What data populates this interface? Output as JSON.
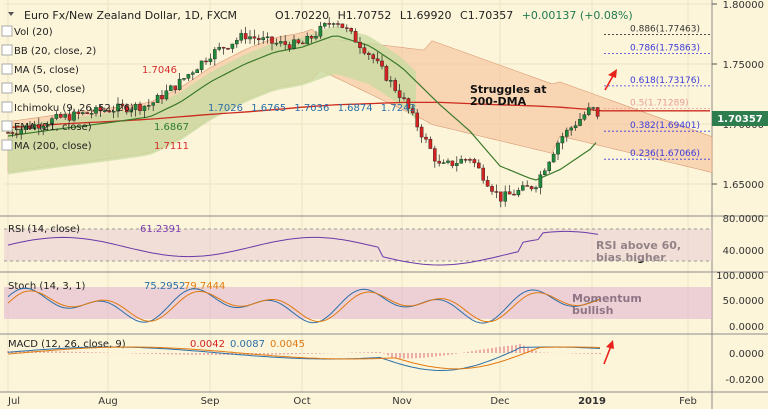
{
  "header": {
    "symbol": "Euro Fx/New Zealand Dollar, 1D, FXCM",
    "open": "O1.70220",
    "high": "H1.70752",
    "low": "L1.69920",
    "close": "C1.70357",
    "change": "+0.00137 (+0.08%)"
  },
  "indicators": [
    {
      "label": "Vol (20)",
      "values": []
    },
    {
      "label": "BB (20, close, 2)",
      "values": []
    },
    {
      "label": "MA (5, close)",
      "values": [
        "1.7046"
      ],
      "color": "#d32f2f"
    },
    {
      "label": "MA (50, close)",
      "values": []
    },
    {
      "label": "Ichimoku (9, 26, 52, 26)",
      "values": [
        "1.7026",
        "1.6765",
        "1.7036",
        "1.6874",
        "1.7243"
      ]
    },
    {
      "label": "EMA (21, close)",
      "values": [
        "1.6867"
      ],
      "color": "#2e7d32"
    },
    {
      "label": "MA (200, close)",
      "values": [
        "1.7111"
      ],
      "color": "#d32f2f"
    }
  ],
  "fib_levels": [
    {
      "label": "0.886(1.77463)",
      "price": 1.77463,
      "color": "#333333"
    },
    {
      "label": "0.786(1.75863)",
      "price": 1.75863,
      "color": "#3a3ad9"
    },
    {
      "label": "0.618(1.73176)",
      "price": 1.73176,
      "color": "#3a3ad9"
    },
    {
      "label": "0.5(1.71289)",
      "price": 1.71289,
      "color": "#e89b9b"
    },
    {
      "label": "0.382(1.69401)",
      "price": 1.69401,
      "color": "#3a3ad9"
    },
    {
      "label": "0.236(1.67066)",
      "price": 1.67066,
      "color": "#3a3ad9"
    }
  ],
  "price_axis": {
    "ticks": [
      "1.80000",
      "1.75000",
      "1.70000",
      "1.65000"
    ],
    "current_price": "1.70357"
  },
  "annotations": {
    "main": "Struggles at\n200-DMA",
    "rsi": "RSI above 60,\nbias higher",
    "stoch": "Momentum\nbullish"
  },
  "rsi": {
    "label": "RSI (14, close)",
    "value": "61.2391",
    "ticks": [
      "80.0000",
      "40.0000"
    ]
  },
  "stoch": {
    "label": "Stoch (14, 3, 1)",
    "k": "75.2952",
    "d": "79.7444",
    "ticks": [
      "100.0000",
      "50.0000",
      "0.0000"
    ]
  },
  "macd": {
    "label": "MACD (12, 26, close, 9)",
    "values": [
      "0.0042",
      "0.0087",
      "0.0045"
    ],
    "ticks": [
      "0.0000",
      "-0.0200"
    ]
  },
  "x_axis": {
    "labels": [
      "Jul",
      "Aug",
      "Sep",
      "Oct",
      "Nov",
      "Dec",
      "2019",
      "Feb"
    ]
  },
  "chart_data": {
    "type": "line",
    "title": "Euro Fx/New Zealand Dollar, 1D, FXCM",
    "x": [
      "Jul",
      "Jul",
      "Aug",
      "Aug",
      "Aug",
      "Sep",
      "Sep",
      "Sep",
      "Oct",
      "Oct",
      "Oct",
      "Nov",
      "Nov",
      "Nov",
      "Dec",
      "Dec",
      "Dec",
      "2019",
      "2019"
    ],
    "series": [
      {
        "name": "Close",
        "values": [
          1.693,
          1.705,
          1.712,
          1.716,
          1.735,
          1.758,
          1.774,
          1.767,
          1.766,
          1.788,
          1.758,
          1.722,
          1.664,
          1.672,
          1.638,
          1.649,
          1.688,
          1.714,
          1.7036
        ]
      },
      {
        "name": "MA (200, close)",
        "values": [
          1.697,
          1.7,
          1.702,
          1.704,
          1.706,
          1.708,
          1.71,
          1.712,
          1.714,
          1.716,
          1.717,
          1.718,
          1.718,
          1.717,
          1.716,
          1.715,
          1.714,
          1.712,
          1.711
        ]
      },
      {
        "name": "EMA (21, close)",
        "values": [
          1.69,
          1.696,
          1.701,
          1.706,
          1.718,
          1.735,
          1.75,
          1.76,
          1.764,
          1.774,
          1.765,
          1.747,
          1.716,
          1.694,
          1.665,
          1.653,
          1.662,
          1.68,
          1.6867
        ]
      }
    ],
    "ylim": [
      1.62,
      1.8
    ],
    "yticks": [
      1.65,
      1.7,
      1.75,
      1.8
    ]
  }
}
